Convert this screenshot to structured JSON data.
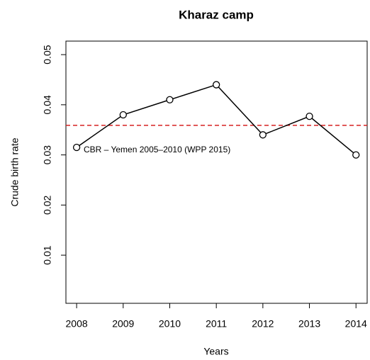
{
  "chart_data": {
    "type": "line",
    "title": "Kharaz camp",
    "xlabel": "Years",
    "ylabel": "Crude birth rate",
    "x": [
      2008,
      2009,
      2010,
      2011,
      2012,
      2013,
      2014
    ],
    "series": [
      {
        "color": "#000000",
        "values": [
          0.0315,
          0.038,
          0.041,
          0.044,
          0.034,
          0.0377,
          0.03
        ]
      }
    ],
    "xlim": [
      2007.77,
      2014.24
    ],
    "xticks": [
      2008,
      2009,
      2010,
      2011,
      2012,
      2013,
      2014
    ],
    "ylim": [
      0.0004,
      0.0527
    ],
    "yticks": [
      0.01,
      0.02,
      0.03,
      0.04,
      0.05
    ],
    "reference_line": {
      "value": 0.0359,
      "label": "CBR – Yemen 2005–2010 (WPP 2015)",
      "color": "#d62020"
    }
  }
}
